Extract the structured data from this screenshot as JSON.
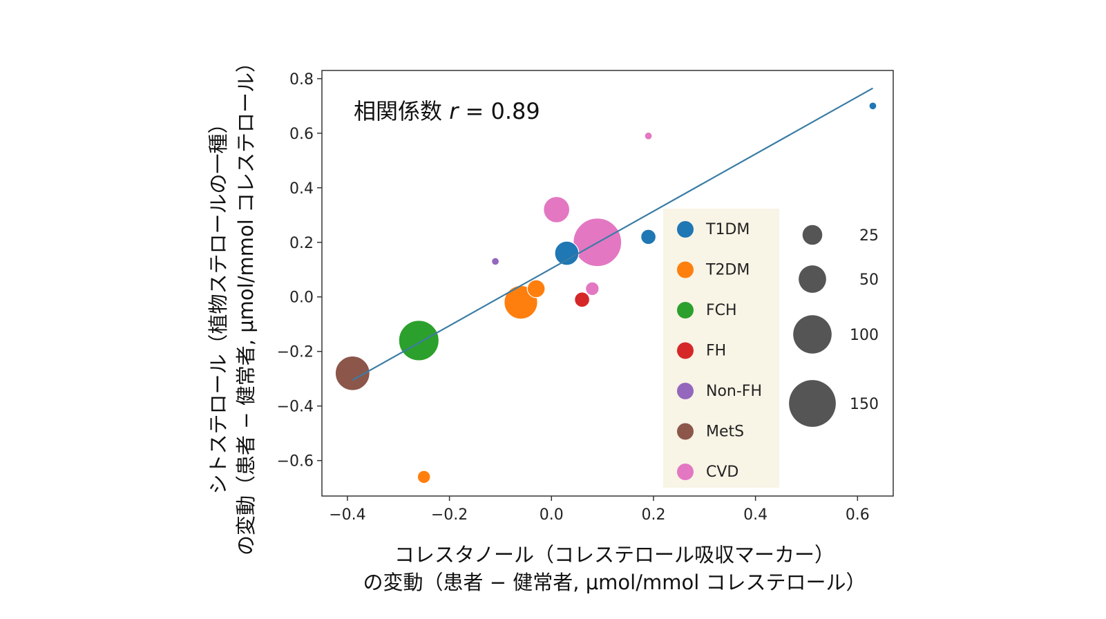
{
  "chart_data": {
    "type": "scatter",
    "xlabel_line1": "コレスタノール（コレステロール吸収マーカー）",
    "xlabel_line2": "の変動（患者 − 健常者, μmol/mmol コレステロール）",
    "ylabel_line1": "シトステロール（植物ステロールの一種）",
    "ylabel_line2": "の変動（患者 − 健常者, μmol/mmol コレステロール）",
    "xlim": [
      -0.45,
      0.67
    ],
    "ylim": [
      -0.73,
      0.83
    ],
    "xticks": [
      -0.4,
      -0.2,
      0.0,
      0.2,
      0.4,
      0.6
    ],
    "yticks": [
      -0.6,
      -0.4,
      -0.2,
      0.0,
      0.2,
      0.4,
      0.6,
      0.8
    ],
    "xtick_labels": [
      "−0.4",
      "−0.2",
      "0.0",
      "0.2",
      "0.4",
      "0.6"
    ],
    "ytick_labels": [
      "−0.6",
      "−0.4",
      "−0.2",
      "0.0",
      "0.2",
      "0.4",
      "0.6",
      "0.8"
    ],
    "annotation_prefix": "相関係数",
    "annotation_r": "r",
    "annotation_value": " = 0.89",
    "regression_line": {
      "x": [
        -0.39,
        0.63
      ],
      "y": [
        -0.305,
        0.765
      ],
      "color": "#3a7ca5"
    },
    "categories": [
      {
        "name": "T1DM",
        "color": "#1f77b4"
      },
      {
        "name": "T2DM",
        "color": "#ff7f0e"
      },
      {
        "name": "FCH",
        "color": "#2ca02c"
      },
      {
        "name": "FH",
        "color": "#d62728"
      },
      {
        "name": "Non-FH",
        "color": "#9467bd"
      },
      {
        "name": "MetS",
        "color": "#8c564b"
      },
      {
        "name": "CVD",
        "color": "#e377c2"
      }
    ],
    "points": [
      {
        "group": "T1DM",
        "x": 0.63,
        "y": 0.7,
        "size": 3
      },
      {
        "group": "T1DM",
        "x": 0.19,
        "y": 0.22,
        "size": 14
      },
      {
        "group": "T1DM",
        "x": 0.03,
        "y": 0.16,
        "size": 38
      },
      {
        "group": "T2DM",
        "x": -0.03,
        "y": 0.03,
        "size": 20
      },
      {
        "group": "T2DM",
        "x": -0.06,
        "y": -0.02,
        "size": 75
      },
      {
        "group": "T2DM",
        "x": -0.25,
        "y": -0.66,
        "size": 10
      },
      {
        "group": "FCH",
        "x": -0.26,
        "y": -0.16,
        "size": 110
      },
      {
        "group": "FH",
        "x": 0.06,
        "y": -0.01,
        "size": 14
      },
      {
        "group": "Non-FH",
        "x": -0.11,
        "y": 0.13,
        "size": 3
      },
      {
        "group": "MetS",
        "x": -0.39,
        "y": -0.28,
        "size": 80
      },
      {
        "group": "CVD",
        "x": 0.19,
        "y": 0.59,
        "size": 3
      },
      {
        "group": "CVD",
        "x": 0.01,
        "y": 0.32,
        "size": 45
      },
      {
        "group": "CVD",
        "x": 0.09,
        "y": 0.2,
        "size": 160
      },
      {
        "group": "CVD",
        "x": 0.08,
        "y": 0.03,
        "size": 11
      }
    ],
    "size_legend": [
      {
        "label": "25",
        "size": 25
      },
      {
        "label": "50",
        "size": 50
      },
      {
        "label": "100",
        "size": 100
      },
      {
        "label": "150",
        "size": 150
      }
    ],
    "size_legend_color": "#555555",
    "legend_bg": "#f8f4e6"
  }
}
